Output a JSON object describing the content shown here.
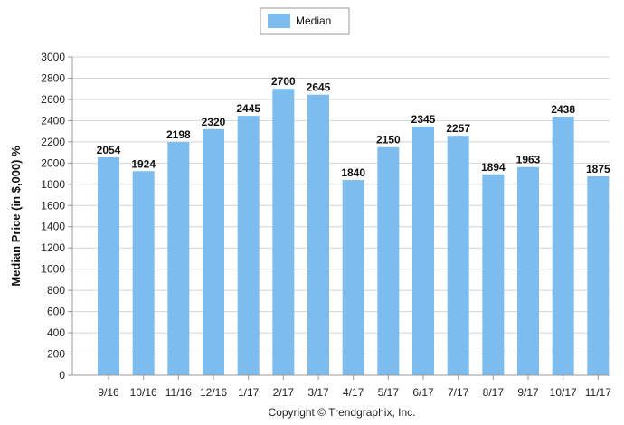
{
  "chart_data": {
    "type": "bar",
    "categories": [
      "9/16",
      "10/16",
      "11/16",
      "12/16",
      "1/17",
      "2/17",
      "3/17",
      "4/17",
      "5/17",
      "6/17",
      "7/17",
      "8/17",
      "9/17",
      "10/17",
      "11/17"
    ],
    "series": [
      {
        "name": "Median",
        "values": [
          2054,
          1924,
          2198,
          2320,
          2445,
          2700,
          2645,
          1840,
          2150,
          2345,
          2257,
          1894,
          1963,
          2438,
          1875
        ],
        "color": "#7cbcee"
      }
    ],
    "data_labels": [
      "2054",
      "1924",
      "2198",
      "2320",
      "2445",
      "2700",
      "2645",
      "1840",
      "2150",
      "2345",
      "2257",
      "1894",
      "1963",
      "2438",
      "1875"
    ],
    "ylabel": "Median Price (in $,000) %",
    "xlabel": "",
    "ylim": [
      0,
      3000
    ],
    "yticks": [
      0,
      200,
      400,
      600,
      800,
      1000,
      1200,
      1400,
      1600,
      1800,
      2000,
      2200,
      2400,
      2600,
      2800,
      3000
    ],
    "grid": true,
    "legend_position": "top-center"
  },
  "footer": {
    "copyright": "Copyright © Trendgraphix, Inc."
  }
}
